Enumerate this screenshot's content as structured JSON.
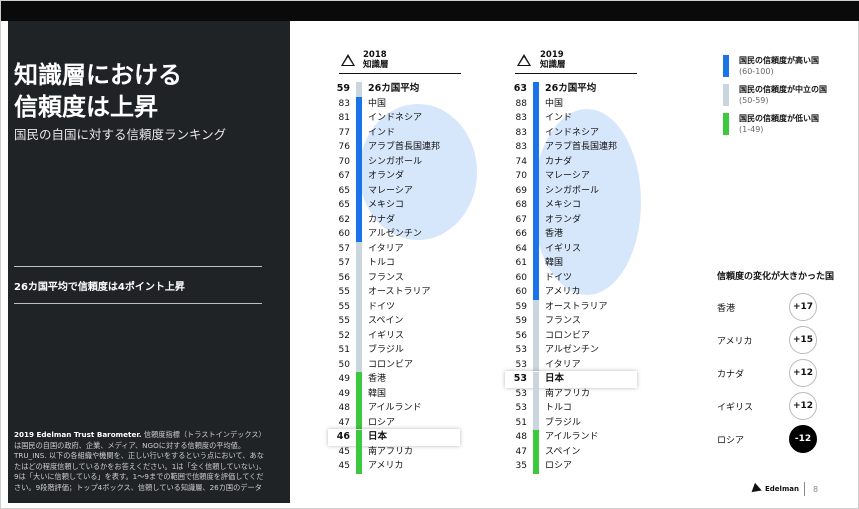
{
  "left": {
    "title_line1": "知識層における",
    "title_line2": "信頼度は上昇",
    "subtitle": "国民の自国に対する信頼度ランキング",
    "claim": "26カ国平均で信頼度は4ポイント上昇",
    "note_bold": "2019 Edelman Trust Barometer.",
    "note_rest": " 信頼度指標（トラストインデックス）は国民の自国の政府、企業、メディア、NGOに対する信頼度の平均値。TRU_INS. 以下の各組織や機関を、正しい行いをするという点において、あなたはどの程度信頼しているかをお答えください。1は「全く信頼していない」、9は「大いに信頼している」を表す。1～9までの範囲で信頼度を評価してください。9段階評価；トップ4ボックス、信頼している知識層、26カ国のデータ"
  },
  "col2018": {
    "year": "2018",
    "label": "知識層",
    "rows": [
      {
        "v": "59",
        "n": "26カ国平均",
        "c": "light",
        "bold": true
      },
      {
        "v": "83",
        "n": "中国",
        "c": "blue"
      },
      {
        "v": "81",
        "n": "インドネシア",
        "c": "blue"
      },
      {
        "v": "77",
        "n": "インド",
        "c": "blue"
      },
      {
        "v": "76",
        "n": "アラブ首長国連邦",
        "c": "blue"
      },
      {
        "v": "70",
        "n": "シンガポール",
        "c": "blue"
      },
      {
        "v": "67",
        "n": "オランダ",
        "c": "blue"
      },
      {
        "v": "65",
        "n": "マレーシア",
        "c": "blue"
      },
      {
        "v": "65",
        "n": "メキシコ",
        "c": "blue"
      },
      {
        "v": "62",
        "n": "カナダ",
        "c": "blue"
      },
      {
        "v": "60",
        "n": "アルゼンチン",
        "c": "blue"
      },
      {
        "v": "57",
        "n": "イタリア",
        "c": "light"
      },
      {
        "v": "57",
        "n": "トルコ",
        "c": "light"
      },
      {
        "v": "56",
        "n": "フランス",
        "c": "light"
      },
      {
        "v": "55",
        "n": "オーストラリア",
        "c": "light"
      },
      {
        "v": "55",
        "n": "ドイツ",
        "c": "light"
      },
      {
        "v": "55",
        "n": "スペイン",
        "c": "light"
      },
      {
        "v": "52",
        "n": "イギリス",
        "c": "light"
      },
      {
        "v": "51",
        "n": "ブラジル",
        "c": "light"
      },
      {
        "v": "50",
        "n": "コロンビア",
        "c": "light"
      },
      {
        "v": "49",
        "n": "香港",
        "c": "green"
      },
      {
        "v": "49",
        "n": "韓国",
        "c": "green"
      },
      {
        "v": "48",
        "n": "アイルランド",
        "c": "green"
      },
      {
        "v": "47",
        "n": "ロシア",
        "c": "green"
      },
      {
        "v": "46",
        "n": "日本",
        "c": "green",
        "bold": true,
        "hl": true
      },
      {
        "v": "45",
        "n": "南アフリカ",
        "c": "green"
      },
      {
        "v": "45",
        "n": "アメリカ",
        "c": "green"
      }
    ]
  },
  "col2019": {
    "year": "2019",
    "label": "知識層",
    "rows": [
      {
        "v": "63",
        "n": "26カ国平均",
        "c": "blue",
        "bold": true
      },
      {
        "v": "88",
        "n": "中国",
        "c": "blue"
      },
      {
        "v": "83",
        "n": "インド",
        "c": "blue"
      },
      {
        "v": "83",
        "n": "インドネシア",
        "c": "blue"
      },
      {
        "v": "83",
        "n": "アラブ首長国連邦",
        "c": "blue"
      },
      {
        "v": "74",
        "n": "カナダ",
        "c": "blue"
      },
      {
        "v": "70",
        "n": "マレーシア",
        "c": "blue"
      },
      {
        "v": "69",
        "n": "シンガポール",
        "c": "blue"
      },
      {
        "v": "68",
        "n": "メキシコ",
        "c": "blue"
      },
      {
        "v": "67",
        "n": "オランダ",
        "c": "blue"
      },
      {
        "v": "66",
        "n": "香港",
        "c": "blue"
      },
      {
        "v": "64",
        "n": "イギリス",
        "c": "blue"
      },
      {
        "v": "61",
        "n": "韓国",
        "c": "blue"
      },
      {
        "v": "60",
        "n": "ドイツ",
        "c": "blue"
      },
      {
        "v": "60",
        "n": "アメリカ",
        "c": "blue"
      },
      {
        "v": "59",
        "n": "オーストラリア",
        "c": "light"
      },
      {
        "v": "59",
        "n": "フランス",
        "c": "light"
      },
      {
        "v": "56",
        "n": "コロンビア",
        "c": "light"
      },
      {
        "v": "53",
        "n": "アルゼンチン",
        "c": "light"
      },
      {
        "v": "53",
        "n": "イタリア",
        "c": "light"
      },
      {
        "v": "53",
        "n": "日本",
        "c": "light",
        "bold": true,
        "hl": true
      },
      {
        "v": "53",
        "n": "南アフリカ",
        "c": "light"
      },
      {
        "v": "53",
        "n": "トルコ",
        "c": "light"
      },
      {
        "v": "51",
        "n": "ブラジル",
        "c": "light"
      },
      {
        "v": "48",
        "n": "アイルランド",
        "c": "green"
      },
      {
        "v": "47",
        "n": "スペイン",
        "c": "green"
      },
      {
        "v": "35",
        "n": "ロシア",
        "c": "green"
      }
    ]
  },
  "legend": [
    {
      "title": "国民の信頼度が高い国",
      "range": "(60-100)",
      "c": "blue"
    },
    {
      "title": "国民の信頼度が中立の国",
      "range": "(50-59)",
      "c": "light"
    },
    {
      "title": "国民の信頼度が低い国",
      "range": "(1-49)",
      "c": "green"
    }
  ],
  "changes": {
    "title": "信頼度の変化が大きかった国",
    "items": [
      {
        "n": "香港",
        "d": "+17"
      },
      {
        "n": "アメリカ",
        "d": "+15"
      },
      {
        "n": "カナダ",
        "d": "+12"
      },
      {
        "n": "イギリス",
        "d": "+12"
      },
      {
        "n": "ロシア",
        "d": "-12"
      }
    ]
  },
  "footer": {
    "brand": "Edelman",
    "page": "8"
  },
  "colors": {
    "blue": "#1a73e8",
    "light": "#c9d6df",
    "green": "#3dc93d",
    "dark": "#1f2326",
    "bubble": "#d6e6fb"
  }
}
